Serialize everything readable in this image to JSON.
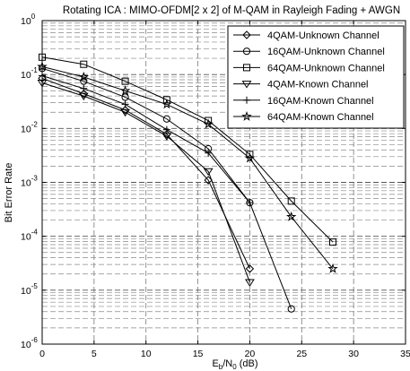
{
  "chart_data": {
    "type": "line",
    "title": "Rotating ICA : MIMO-OFDM[2 x 2] of M-QAM in Rayleigh Fading + AWGN",
    "xlabel": "E_b/N_0 (dB)",
    "xlabel_parts": {
      "main": "E",
      "sub1": "b",
      "mid": "/N",
      "sub2": "0",
      "unit": " (dB)"
    },
    "ylabel": "Bit Error Rate",
    "xlim": [
      0,
      35
    ],
    "ylim": [
      1e-06,
      1
    ],
    "yscale": "log",
    "grid": true,
    "grid_style": "dashed",
    "legend_position": "top-right",
    "x_ticks": [
      0,
      5,
      10,
      15,
      20,
      25,
      30,
      35
    ],
    "y_tick_labels": [
      {
        "base": "10",
        "exp": "0",
        "value": 1
      },
      {
        "base": "10",
        "exp": "-1",
        "value": 0.1
      },
      {
        "base": "10",
        "exp": "-2",
        "value": 0.01
      },
      {
        "base": "10",
        "exp": "-3",
        "value": 0.001
      },
      {
        "base": "10",
        "exp": "-4",
        "value": 0.0001
      },
      {
        "base": "10",
        "exp": "-5",
        "value": 1e-05
      },
      {
        "base": "10",
        "exp": "-6",
        "value": 1e-06
      }
    ],
    "series": [
      {
        "name": "4QAM-Unknown Channel",
        "marker": "diamond",
        "x": [
          0,
          4,
          8,
          12,
          16,
          20
        ],
        "y": [
          0.085,
          0.044,
          0.022,
          0.0078,
          0.0011,
          2.5e-05
        ]
      },
      {
        "name": "16QAM-Unknown Channel",
        "marker": "circle",
        "x": [
          0,
          4,
          8,
          12,
          16,
          20,
          24
        ],
        "y": [
          0.13,
          0.075,
          0.038,
          0.015,
          0.0042,
          0.00042,
          4.5e-06
        ]
      },
      {
        "name": "64QAM-Unknown Channel",
        "marker": "square",
        "x": [
          0,
          4,
          8,
          12,
          16,
          20,
          24,
          28
        ],
        "y": [
          0.21,
          0.155,
          0.075,
          0.034,
          0.014,
          0.0033,
          0.00045,
          7.8e-05
        ]
      },
      {
        "name": "4QAM-Known Channel",
        "marker": "triangle-down",
        "x": [
          0,
          4,
          8,
          12,
          16,
          20
        ],
        "y": [
          0.07,
          0.04,
          0.02,
          0.0072,
          0.0016,
          1.4e-05
        ]
      },
      {
        "name": "16QAM-Known Channel",
        "marker": "plus",
        "x": [
          0,
          4,
          8,
          12,
          16,
          20
        ],
        "y": [
          0.095,
          0.055,
          0.028,
          0.0095,
          0.0035,
          0.00042
        ]
      },
      {
        "name": "64QAM-Known Channel",
        "marker": "star",
        "x": [
          0,
          4,
          8,
          12,
          16,
          20,
          24,
          28
        ],
        "y": [
          0.14,
          0.09,
          0.05,
          0.028,
          0.012,
          0.0028,
          0.00023,
          2.5e-05
        ]
      }
    ]
  }
}
